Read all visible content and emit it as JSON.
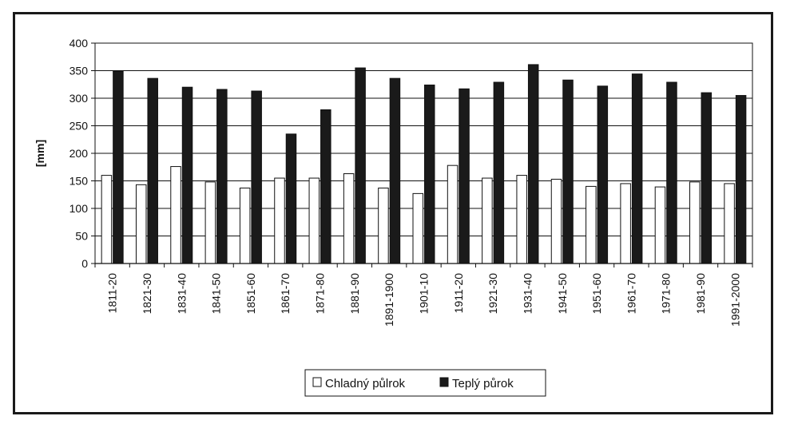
{
  "chart_data": {
    "type": "bar",
    "ylabel": "[mm]",
    "xlabel": "",
    "ylim": [
      0,
      400
    ],
    "yticks": [
      0,
      50,
      100,
      150,
      200,
      250,
      300,
      350,
      400
    ],
    "grid": true,
    "legend_position": "bottom",
    "categories": [
      "1811-20",
      "1821-30",
      "1831-40",
      "1841-50",
      "1851-60",
      "1861-70",
      "1871-80",
      "1881-90",
      "1891-1900",
      "1901-10",
      "1911-20",
      "1921-30",
      "1931-40",
      "1941-50",
      "1951-60",
      "1961-70",
      "1971-80",
      "1981-90",
      "1991-2000"
    ],
    "series": [
      {
        "name": "Chladný půlrok",
        "color": "#ffffff",
        "values": [
          160,
          143,
          176,
          148,
          137,
          155,
          155,
          163,
          137,
          127,
          178,
          155,
          160,
          153,
          140,
          145,
          139,
          148,
          145
        ]
      },
      {
        "name": "Teplý půrok",
        "color": "#1a1a1a",
        "values": [
          349,
          336,
          320,
          316,
          313,
          235,
          279,
          355,
          336,
          324,
          317,
          329,
          361,
          333,
          322,
          344,
          329,
          310,
          305
        ]
      }
    ]
  }
}
